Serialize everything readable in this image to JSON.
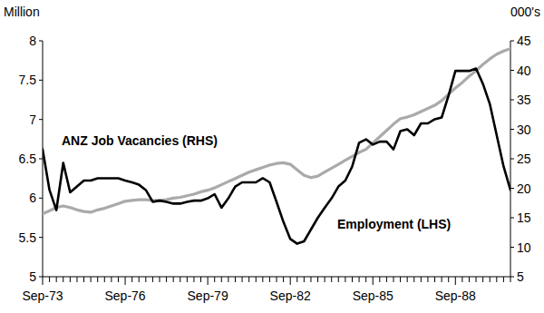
{
  "chart_data": {
    "type": "line",
    "y_label": "Million",
    "y2_label": "000's",
    "categories": [
      "Sep-73",
      null,
      null,
      null,
      null,
      null,
      null,
      null,
      null,
      null,
      null,
      null,
      "Sep-76",
      null,
      null,
      null,
      null,
      null,
      null,
      null,
      null,
      null,
      null,
      null,
      "Sep-79",
      null,
      null,
      null,
      null,
      null,
      null,
      null,
      null,
      null,
      null,
      null,
      "Sep-82",
      null,
      null,
      null,
      null,
      null,
      null,
      null,
      null,
      null,
      null,
      null,
      "Sep-85",
      null,
      null,
      null,
      null,
      null,
      null,
      null,
      null,
      null,
      null,
      null,
      "Sep-88",
      null,
      null,
      null,
      null,
      null,
      null,
      null,
      null
    ],
    "series": [
      {
        "name": "Employment (LHS)",
        "color": "#aaaaaa",
        "axis": "y",
        "values": [
          5.8,
          5.84,
          5.88,
          5.9,
          5.88,
          5.85,
          5.83,
          5.82,
          5.85,
          5.87,
          5.9,
          5.93,
          5.96,
          5.97,
          5.98,
          5.98,
          5.97,
          5.97,
          5.98,
          6.0,
          6.01,
          6.03,
          6.05,
          6.08,
          6.1,
          6.13,
          6.17,
          6.21,
          6.25,
          6.29,
          6.33,
          6.36,
          6.39,
          6.42,
          6.44,
          6.45,
          6.43,
          6.36,
          6.29,
          6.26,
          6.28,
          6.33,
          6.38,
          6.43,
          6.48,
          6.53,
          6.58,
          6.62,
          6.7,
          6.78,
          6.86,
          6.94,
          7.01,
          7.03,
          7.06,
          7.1,
          7.14,
          7.18,
          7.24,
          7.32,
          7.4,
          7.47,
          7.55,
          7.62,
          7.7,
          7.77,
          7.83,
          7.87,
          7.9
        ]
      },
      {
        "name": "ANZ Job Vacancies (RHS)",
        "color": "#000000",
        "axis": "y2",
        "values": [
          26.6,
          19.7,
          16.3,
          24.3,
          19.3,
          20.3,
          21.3,
          21.3,
          21.7,
          21.7,
          21.7,
          21.7,
          21.3,
          21.0,
          20.6,
          19.7,
          17.7,
          17.9,
          17.7,
          17.4,
          17.4,
          17.7,
          17.9,
          17.9,
          18.3,
          19.0,
          16.7,
          18.3,
          20.3,
          21.0,
          21.0,
          21.0,
          21.7,
          21.0,
          17.7,
          14.3,
          11.4,
          10.6,
          11.0,
          13.0,
          15.0,
          16.7,
          18.3,
          20.3,
          21.3,
          23.7,
          27.7,
          28.3,
          27.4,
          27.9,
          27.9,
          26.6,
          29.7,
          30.0,
          29.0,
          31.0,
          31.0,
          31.7,
          32.0,
          35.7,
          39.9,
          39.9,
          39.9,
          40.3,
          37.7,
          34.3,
          29.0,
          23.7,
          19.7
        ]
      }
    ],
    "ylim": [
      5,
      8
    ],
    "yticks": [
      5,
      5.5,
      6,
      6.5,
      7,
      7.5,
      8
    ],
    "y2lim": [
      5,
      45
    ],
    "y2ticks": [
      5,
      10,
      15,
      20,
      25,
      30,
      35,
      40,
      45
    ],
    "grid": false
  }
}
